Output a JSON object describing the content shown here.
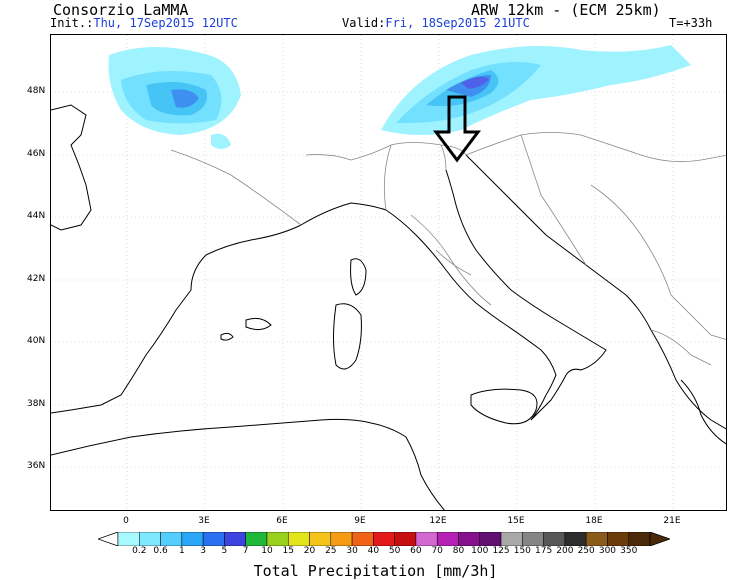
{
  "header": {
    "org": "Consorzio LaMMA",
    "model": "ARW 12km - (ECM 25km)",
    "init_label": "Init.:",
    "init_value": "Thu, 17Sep2015 12UTC",
    "valid_label": "Valid:",
    "valid_value": "Fri, 18Sep2015 21UTC",
    "lead_time": "T=+33h"
  },
  "map": {
    "lat_labels": [
      "48N",
      "46N",
      "44N",
      "42N",
      "40N",
      "38N",
      "36N"
    ],
    "lon_labels": [
      "0",
      "3E",
      "6E",
      "9E",
      "12E",
      "15E",
      "18E",
      "21E"
    ],
    "annotation": "down-arrow pointing at north-east Italy / Venice area",
    "precip_colors": [
      "#9ff3ff",
      "#73e0ff",
      "#46c4f5",
      "#3f8ff0",
      "#5060e8",
      "#6a40d6"
    ]
  },
  "legend": {
    "title": "Total Precipitation [mm/3h]",
    "values": [
      "0.2",
      "0.6",
      "1",
      "3",
      "5",
      "7",
      "10",
      "15",
      "20",
      "25",
      "30",
      "40",
      "50",
      "60",
      "70",
      "80",
      "100",
      "125",
      "150",
      "175",
      "200",
      "250",
      "300",
      "350"
    ],
    "colors": [
      "#a8f8ff",
      "#7fe8ff",
      "#55ceff",
      "#2aa6f7",
      "#2b6ff2",
      "#3d43e0",
      "#1fb83a",
      "#9ad11f",
      "#e4e41c",
      "#f5c41c",
      "#f59b16",
      "#f0641a",
      "#e31a1a",
      "#c80f0f",
      "#d268d0",
      "#b420b4",
      "#86118c",
      "#601070",
      "#a8a8a8",
      "#858585",
      "#585858",
      "#2d2d2d",
      "#8a5a1a",
      "#6a3c0a",
      "#4a2a08"
    ]
  }
}
